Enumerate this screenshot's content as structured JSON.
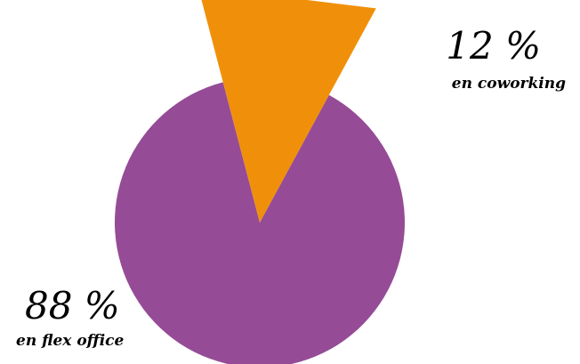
{
  "chart_data": {
    "type": "pie",
    "slices": [
      {
        "value": 88,
        "label": "88 %",
        "sublabel": "en flex office",
        "color": "#954b96",
        "exploded": false
      },
      {
        "value": 12,
        "label": "12 %",
        "sublabel": "en coworking",
        "color": "#f0900a",
        "exploded": true
      }
    ],
    "legend": "none"
  }
}
